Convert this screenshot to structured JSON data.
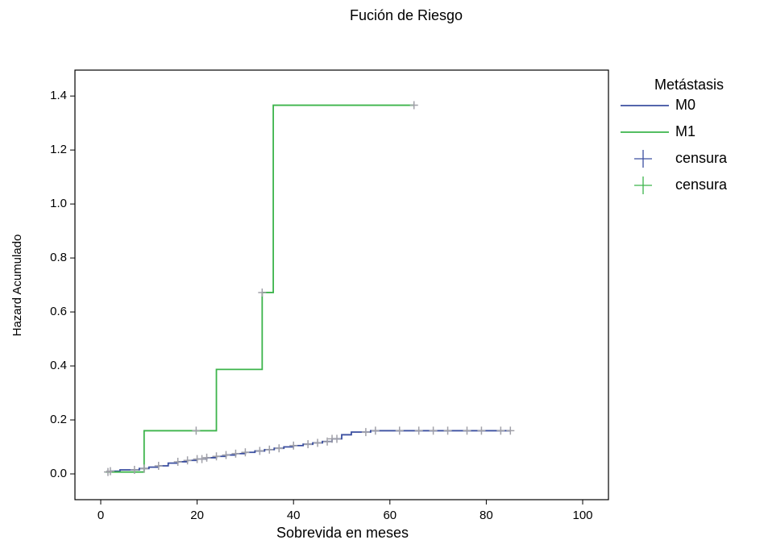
{
  "chart_data": {
    "type": "line",
    "step": true,
    "title": "Fución de Riesgo",
    "x_label": "Sobrevida en meses",
    "y_label": "Hazard Acumulado",
    "legend_title": "Metástasis",
    "legend_position": "right",
    "xlim": [
      -5.35,
      105.35
    ],
    "xticks": [
      0,
      20,
      40,
      60,
      80,
      100
    ],
    "ylim": [
      -0.0955,
      1.496
    ],
    "yticks": [
      {
        "value": 0,
        "label": "0.0"
      },
      0.2,
      0.4,
      0.6,
      0.8,
      {
        "value": 1,
        "label": "1.0"
      },
      1.2,
      1.4
    ],
    "series": [
      {
        "name": "M0",
        "color": "#3b4fa0",
        "marker": "none",
        "x": [
          2,
          4,
          8,
          10,
          12,
          14,
          16,
          18,
          20,
          22,
          24,
          26,
          28,
          30,
          32,
          34,
          36,
          38,
          40,
          42,
          44,
          46,
          48,
          50,
          52,
          56,
          85
        ],
        "values": [
          0.01,
          0.015,
          0.02,
          0.025,
          0.03,
          0.04,
          0.045,
          0.05,
          0.055,
          0.06,
          0.065,
          0.07,
          0.075,
          0.08,
          0.085,
          0.09,
          0.095,
          0.1,
          0.105,
          0.11,
          0.115,
          0.12,
          0.13,
          0.145,
          0.155,
          0.16,
          0.16
        ]
      },
      {
        "name": "M1",
        "color": "#3cb44b",
        "marker": "none",
        "x": [
          1,
          9,
          24,
          33.5,
          35.8,
          65
        ],
        "values": [
          0.007,
          0.16,
          0.387,
          0.672,
          1.366,
          1.366
        ]
      },
      {
        "name": "censura",
        "color": "#3b4fa0",
        "marker": "plus",
        "marker_color": "#a0a0a8",
        "x": [
          2,
          7,
          9,
          12,
          16,
          18,
          20,
          21,
          22,
          24,
          26,
          28,
          30,
          33,
          35,
          37,
          40,
          43,
          45,
          47,
          48,
          49,
          55,
          57,
          62,
          66,
          69,
          72,
          76,
          79,
          83,
          85
        ],
        "values": [
          0.01,
          0.015,
          0.02,
          0.03,
          0.045,
          0.05,
          0.055,
          0.055,
          0.06,
          0.065,
          0.07,
          0.075,
          0.08,
          0.085,
          0.09,
          0.095,
          0.105,
          0.11,
          0.115,
          0.12,
          0.13,
          0.13,
          0.155,
          0.16,
          0.16,
          0.16,
          0.16,
          0.16,
          0.16,
          0.16,
          0.16,
          0.16
        ]
      },
      {
        "name": "censura",
        "color": "#3cb44b",
        "marker": "plus",
        "marker_color": "#a0a0a8",
        "x": [
          1.5,
          19.8,
          33.5,
          65
        ],
        "values": [
          0.007,
          0.16,
          0.672,
          1.366
        ]
      }
    ]
  }
}
